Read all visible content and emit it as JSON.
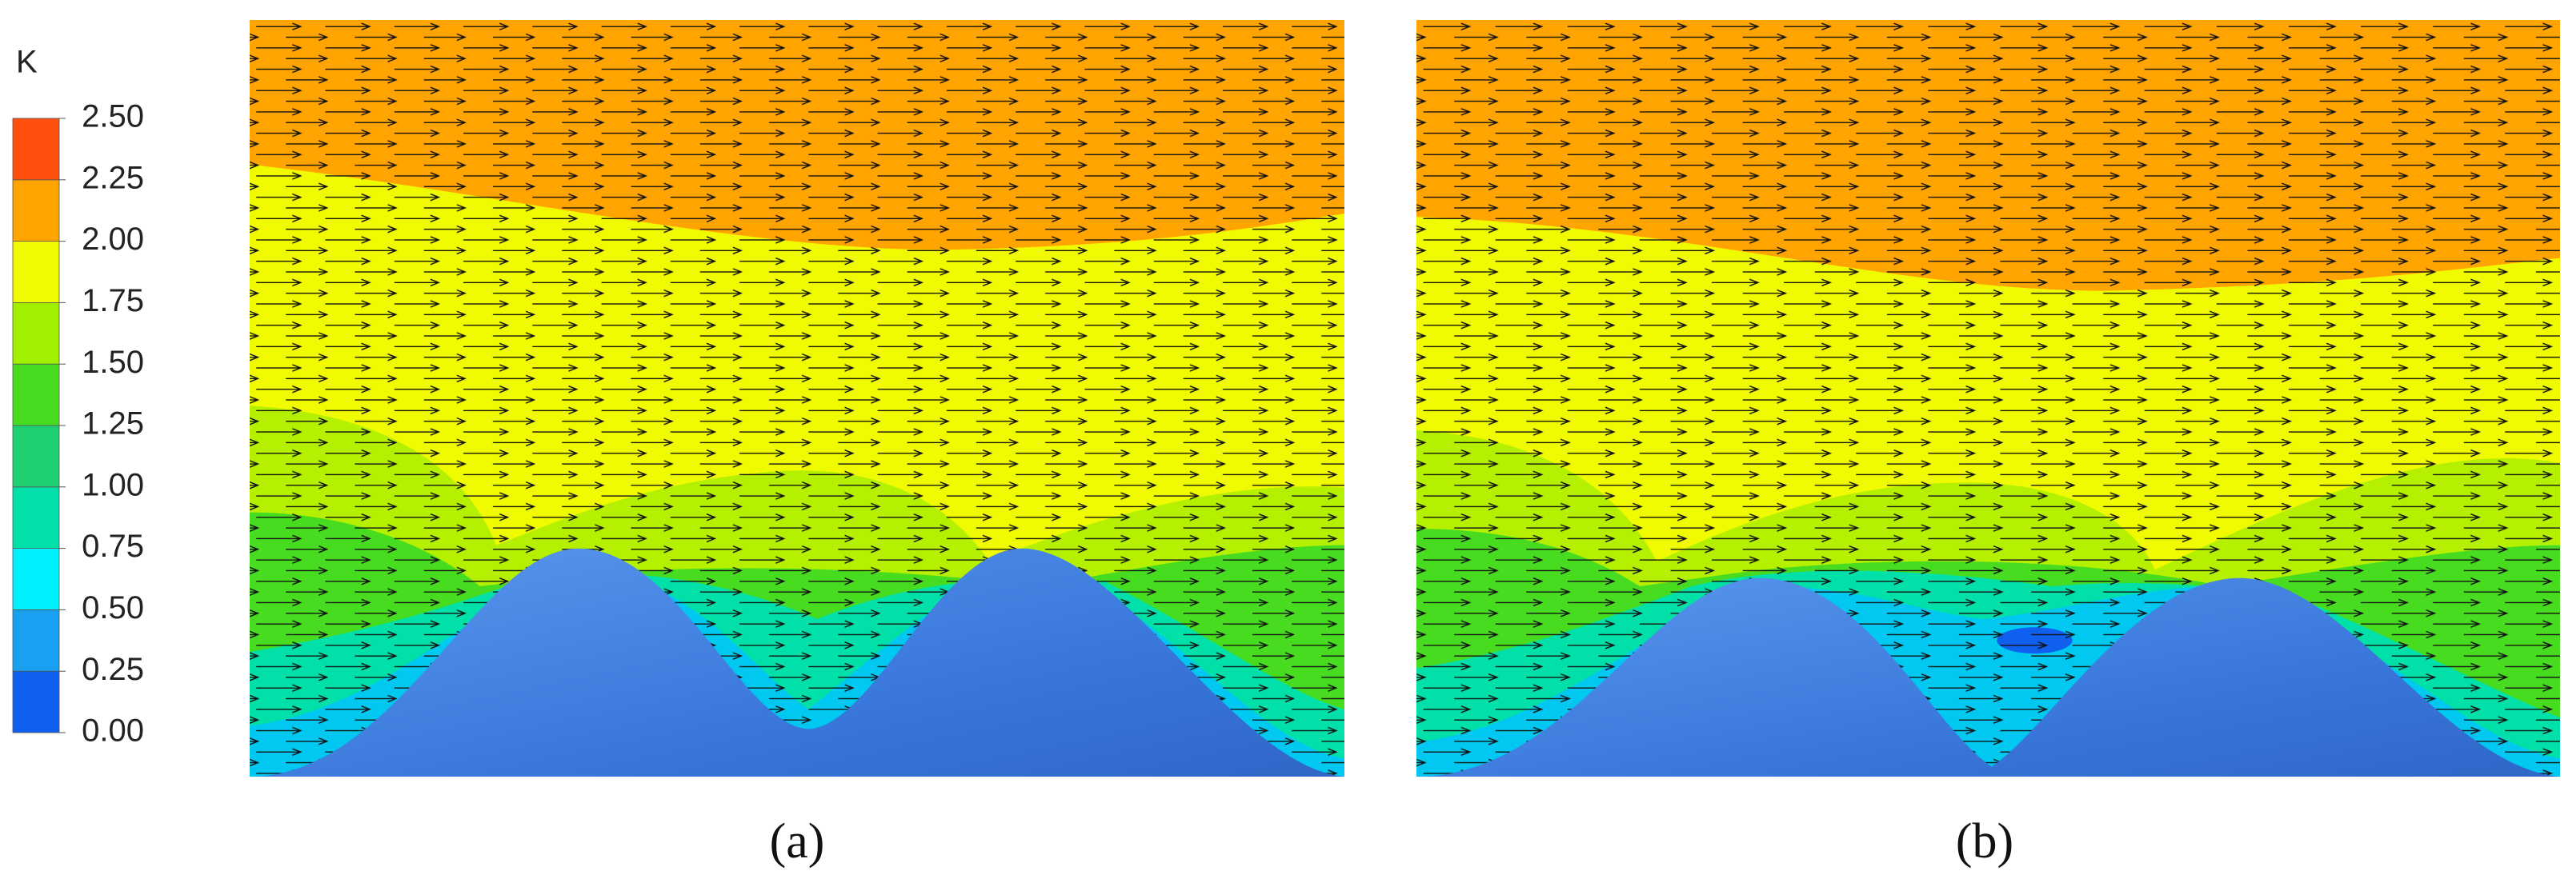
{
  "colorbar": {
    "title": "K",
    "colors": [
      "#1060f0",
      "#1aa0f0",
      "#00f0ff",
      "#00e0a8",
      "#20d070",
      "#48dc20",
      "#a0f000",
      "#f0fa00",
      "#ffa400",
      "#ff5010"
    ],
    "ticks": [
      {
        "value": 0,
        "label": "0.00"
      },
      {
        "value": 0.25,
        "label": "0.25"
      },
      {
        "value": 0.5,
        "label": "0.50"
      },
      {
        "value": 0.75,
        "label": "0.75"
      },
      {
        "value": 1,
        "label": "1.00"
      },
      {
        "value": 1.25,
        "label": "1.25"
      },
      {
        "value": 1.5,
        "label": "1.50"
      },
      {
        "value": 1.75,
        "label": "1.75"
      },
      {
        "value": 2,
        "label": "2.00"
      },
      {
        "value": 2.25,
        "label": "2.25"
      },
      {
        "value": 2.5,
        "label": "2.50"
      }
    ]
  },
  "panels": [
    {
      "label": "(a)"
    },
    {
      "label": "(b)"
    }
  ]
}
